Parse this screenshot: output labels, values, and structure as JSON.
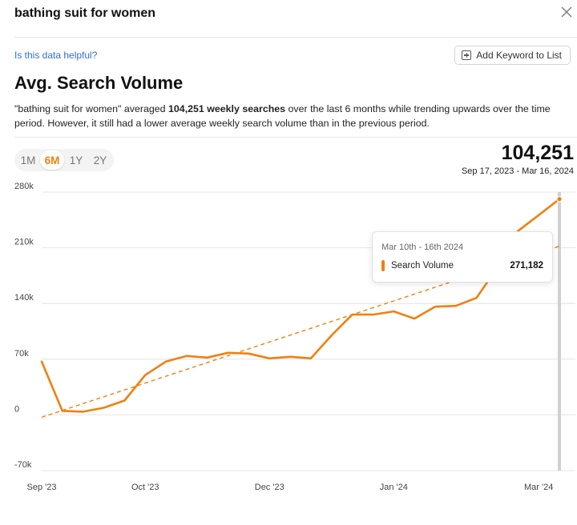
{
  "header": {
    "keyword": "bathing suit for women",
    "close_icon": "close-icon"
  },
  "feedback_link": "Is this data helpful?",
  "add_button": {
    "label": "Add Keyword to List",
    "icon": "plus-square-icon"
  },
  "section_title": "Avg. Search Volume",
  "description": {
    "part1": "\"bathing suit for women\" averaged ",
    "bold": "104,251 weekly searches",
    "part2": " over the last 6 months while trending upwards over the time period. However, it still had a lower average weekly search volume than in the previous period."
  },
  "range_tabs": [
    {
      "label": "1M",
      "active": false
    },
    {
      "label": "6M",
      "active": true
    },
    {
      "label": "1Y",
      "active": false
    },
    {
      "label": "2Y",
      "active": false
    }
  ],
  "summary": {
    "value": "104,251",
    "date_range": "Sep 17, 2023 - Mar 16, 2024"
  },
  "tooltip": {
    "date": "Mar 10th - 16th 2024",
    "series": "Search Volume",
    "value": "271,182"
  },
  "colors": {
    "accent": "#f08010",
    "grid": "#e4e4e4",
    "hover_band": "#d0d0d0"
  },
  "chart_data": {
    "type": "line",
    "x": [
      "2023-09-17",
      "2023-09-24",
      "2023-10-01",
      "2023-10-08",
      "2023-10-15",
      "2023-10-22",
      "2023-10-29",
      "2023-11-05",
      "2023-11-12",
      "2023-11-19",
      "2023-11-26",
      "2023-12-03",
      "2023-12-10",
      "2023-12-17",
      "2023-12-24",
      "2023-12-31",
      "2024-01-07",
      "2024-01-14",
      "2024-01-21",
      "2024-01-28",
      "2024-02-04",
      "2024-02-11",
      "2024-02-18",
      "2024-02-25",
      "2024-03-03",
      "2024-03-10"
    ],
    "series": [
      {
        "name": "Search Volume",
        "values": [
          67000,
          5000,
          4000,
          9000,
          18000,
          50000,
          67000,
          74000,
          72000,
          78000,
          77000,
          71000,
          73000,
          71000,
          100000,
          126000,
          126000,
          130000,
          121000,
          136000,
          137000,
          147000,
          185000,
          231000,
          251000,
          271182
        ]
      }
    ],
    "trendline": {
      "start": -3000,
      "end": 212000
    },
    "x_tick_labels": [
      "Sep '23",
      "Oct '23",
      "Dec '23",
      "Jan '24",
      "Mar '24"
    ],
    "x_tick_dates": [
      "2023-09-17",
      "2023-10-22",
      "2023-12-03",
      "2024-01-14",
      "2024-03-03"
    ],
    "y_ticks": [
      -70000,
      0,
      70000,
      140000,
      210000,
      280000
    ],
    "y_tick_labels": [
      "-70k",
      "0",
      "70k",
      "140k",
      "210k",
      "280k"
    ],
    "ylim": [
      -70000,
      280000
    ],
    "grid": true,
    "highlight_date": "2024-03-10"
  }
}
